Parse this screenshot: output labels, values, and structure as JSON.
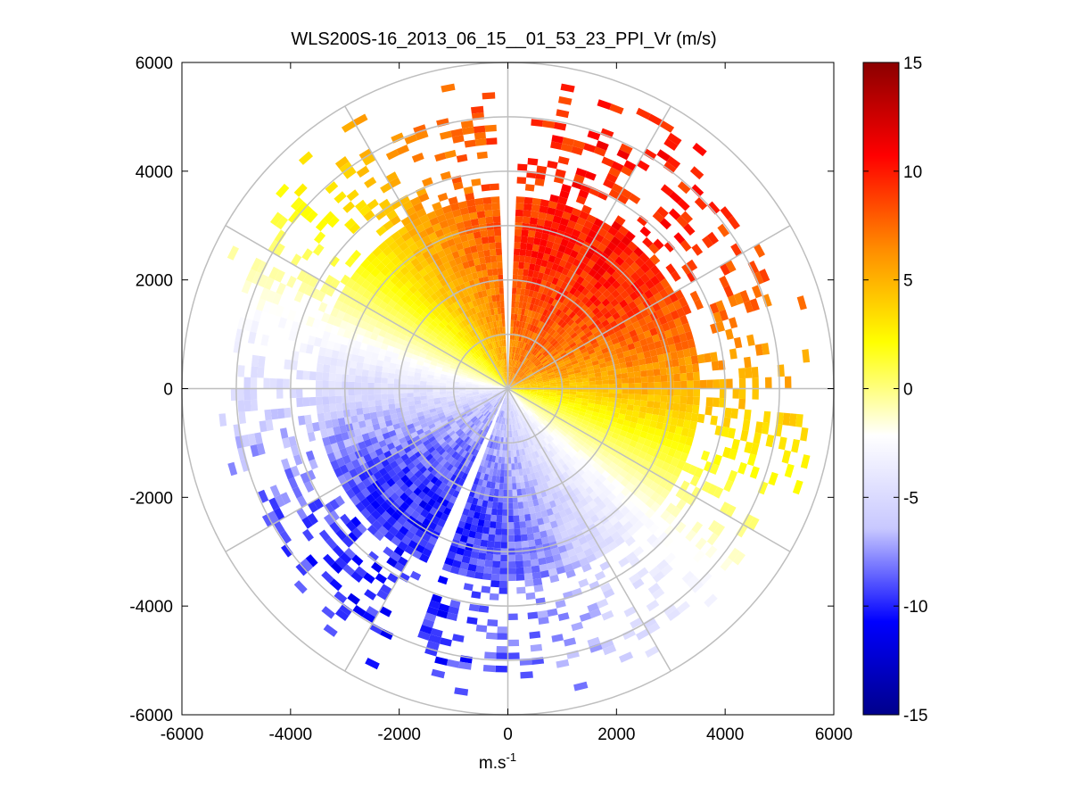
{
  "chart_data": {
    "type": "heatmap",
    "subtype": "polar-ppi",
    "title": "WLS200S-16_2013_06_15__01_53_23_PPI_Vr (m/s)",
    "xlabel_base": "m.s",
    "xlabel_exponent": "-1",
    "xlim": [
      -6000,
      6000
    ],
    "ylim": [
      -6000,
      6000
    ],
    "x_ticks": [
      -6000,
      -4000,
      -2000,
      0,
      2000,
      4000,
      6000
    ],
    "y_ticks": [
      6000,
      4000,
      2000,
      0,
      -2000,
      -4000,
      -6000
    ],
    "x_tick_labels": [
      "-6000",
      "-4000",
      "-2000",
      "0",
      "2000",
      "4000",
      "6000"
    ],
    "y_tick_labels": [
      "6000",
      "4000",
      "2000",
      "0",
      "-2000",
      "-4000",
      "-6000"
    ],
    "polar_grid": {
      "ring_radii": [
        1000,
        2000,
        3000,
        4000,
        5000,
        6000
      ],
      "spoke_angles_deg": [
        0,
        30,
        60,
        90,
        120,
        150,
        180,
        210,
        240,
        270,
        300,
        330
      ]
    },
    "velocity_field": {
      "description": "Radial velocity (m/s); positive (yellow-red) in the upper-right half, negative (white-blue) in the lower-left half",
      "zero_line_azimuth_deg": 118,
      "max_abs_velocity": 10,
      "core_range": 3500,
      "sparse_range": 5200,
      "gaps_azimuth_deg": [
        0,
        203
      ]
    },
    "colorbar": {
      "min": -15,
      "max": 15,
      "ticks": [
        15,
        10,
        5,
        0,
        -5,
        -10,
        -15
      ],
      "tick_labels": [
        "15",
        "10",
        "5",
        "0",
        "-5",
        "-10",
        "-15"
      ],
      "colormap": [
        "#00008B",
        "#0000FF",
        "#C8C8FF",
        "#FFFFFF",
        "#FFFF00",
        "#FF8C00",
        "#FF0000",
        "#8B0000"
      ]
    },
    "colors": {
      "grid": "#BEBEBE",
      "axes": "#000000"
    }
  }
}
